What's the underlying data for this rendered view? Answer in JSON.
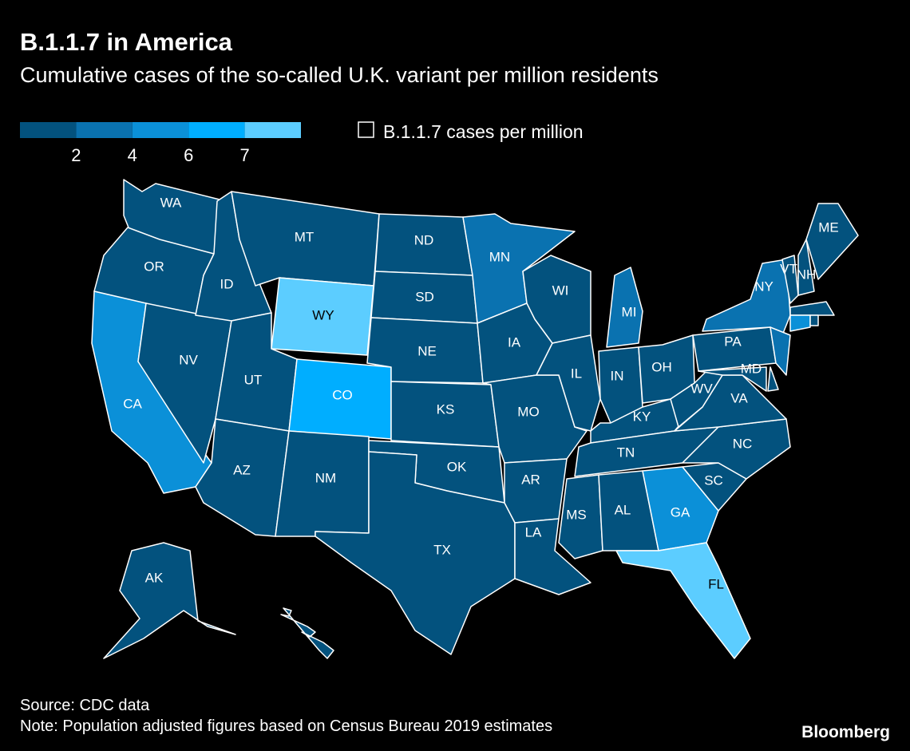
{
  "header": {
    "title": "B.1.1.7 in America",
    "subtitle": "Cumulative cases of the so-called U.K. variant per million residents"
  },
  "chart_data": {
    "type": "choropleth",
    "legend": {
      "title": "B.1.1.7 cases per million",
      "colors": [
        "#03527e",
        "#0a72b0",
        "#0b90d8",
        "#00aeff",
        "#5ccdff"
      ],
      "ticks": [
        2,
        4,
        6,
        7
      ]
    },
    "states": [
      {
        "label": "WA",
        "color": "#03527e"
      },
      {
        "label": "OR",
        "color": "#03527e"
      },
      {
        "label": "CA",
        "color": "#0b90d8"
      },
      {
        "label": "NV",
        "color": "#03527e"
      },
      {
        "label": "ID",
        "color": "#03527e"
      },
      {
        "label": "MT",
        "color": "#03527e"
      },
      {
        "label": "WY",
        "color": "#5ccdff"
      },
      {
        "label": "UT",
        "color": "#03527e"
      },
      {
        "label": "CO",
        "color": "#00aeff"
      },
      {
        "label": "AZ",
        "color": "#03527e"
      },
      {
        "label": "NM",
        "color": "#03527e"
      },
      {
        "label": "ND",
        "color": "#03527e"
      },
      {
        "label": "SD",
        "color": "#03527e"
      },
      {
        "label": "NE",
        "color": "#03527e"
      },
      {
        "label": "KS",
        "color": "#03527e"
      },
      {
        "label": "OK",
        "color": "#03527e"
      },
      {
        "label": "TX",
        "color": "#03527e"
      },
      {
        "label": "MN",
        "color": "#0a72b0"
      },
      {
        "label": "IA",
        "color": "#03527e"
      },
      {
        "label": "MO",
        "color": "#03527e"
      },
      {
        "label": "AR",
        "color": "#03527e"
      },
      {
        "label": "LA",
        "color": "#03527e"
      },
      {
        "label": "WI",
        "color": "#03527e"
      },
      {
        "label": "IL",
        "color": "#03527e"
      },
      {
        "label": "MI",
        "color": "#0a72b0"
      },
      {
        "label": "IN",
        "color": "#03527e"
      },
      {
        "label": "OH",
        "color": "#03527e"
      },
      {
        "label": "KY",
        "color": "#03527e"
      },
      {
        "label": "TN",
        "color": "#03527e"
      },
      {
        "label": "MS",
        "color": "#03527e"
      },
      {
        "label": "AL",
        "color": "#03527e"
      },
      {
        "label": "GA",
        "color": "#0b90d8"
      },
      {
        "label": "FL",
        "color": "#5ccdff"
      },
      {
        "label": "SC",
        "color": "#03527e"
      },
      {
        "label": "NC",
        "color": "#03527e"
      },
      {
        "label": "VA",
        "color": "#03527e"
      },
      {
        "label": "WV",
        "color": "#03527e"
      },
      {
        "label": "PA",
        "color": "#03527e"
      },
      {
        "label": "NY",
        "color": "#0a72b0"
      },
      {
        "label": null,
        "color": "#0a72b0"
      },
      {
        "label": "MD",
        "color": "#03527e"
      },
      {
        "label": null,
        "color": "#03527e"
      },
      {
        "label": "VT",
        "color": "#03527e"
      },
      {
        "label": "NH",
        "color": "#03527e"
      },
      {
        "label": "ME",
        "color": "#03527e"
      },
      {
        "label": null,
        "color": "#03527e"
      },
      {
        "label": null,
        "color": "#0b90d8"
      },
      {
        "label": null,
        "color": "#03527e"
      },
      {
        "label": "AK",
        "color": "#03527e"
      },
      {
        "label": null,
        "color": "#03527e"
      }
    ]
  },
  "footer": {
    "source": "Source: CDC data",
    "note": "Note: Population adjusted figures based on Census Bureau 2019 estimates",
    "brand": "Bloomberg"
  }
}
